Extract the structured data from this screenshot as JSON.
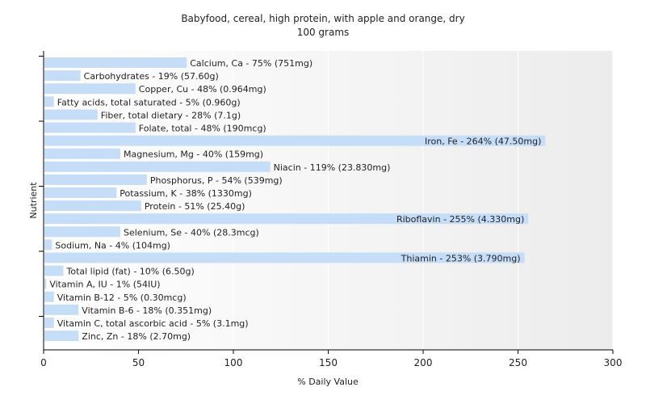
{
  "chart_data": {
    "type": "bar",
    "orientation": "horizontal",
    "title": "Babyfood, cereal, high protein, with apple and orange, dry",
    "subtitle": "100 grams",
    "xlabel": "% Daily Value",
    "ylabel": "Nutrient",
    "xlim": [
      0,
      300
    ],
    "xticks": [
      "0",
      "50",
      "100",
      "150",
      "200",
      "250",
      "300"
    ],
    "grid": true,
    "bar_color": "#c6ddf7",
    "categories": [
      "Calcium, Ca",
      "Carbohydrates",
      "Copper, Cu",
      "Fatty acids, total saturated",
      "Fiber, total dietary",
      "Folate, total",
      "Iron, Fe",
      "Magnesium, Mg",
      "Niacin",
      "Phosphorus, P",
      "Potassium, K",
      "Protein",
      "Riboflavin",
      "Selenium, Se",
      "Sodium, Na",
      "Thiamin",
      "Total lipid (fat)",
      "Vitamin A, IU",
      "Vitamin B-12",
      "Vitamin B-6",
      "Vitamin C, total ascorbic acid",
      "Zinc, Zn"
    ],
    "values": [
      75,
      19,
      48,
      5,
      28,
      48,
      264,
      40,
      119,
      54,
      38,
      51,
      255,
      40,
      4,
      253,
      10,
      1,
      5,
      18,
      5,
      18
    ],
    "labels": [
      "Calcium, Ca - 75% (751mg)",
      "Carbohydrates - 19% (57.60g)",
      "Copper, Cu - 48% (0.964mg)",
      "Fatty acids, total saturated - 5% (0.960g)",
      "Fiber, total dietary - 28% (7.1g)",
      "Folate, total - 48% (190mcg)",
      "Iron, Fe - 264% (47.50mg)",
      "Magnesium, Mg - 40% (159mg)",
      "Niacin - 119% (23.830mg)",
      "Phosphorus, P - 54% (539mg)",
      "Potassium, K - 38% (1330mg)",
      "Protein - 51% (25.40g)",
      "Riboflavin - 255% (4.330mg)",
      "Selenium, Se - 40% (28.3mcg)",
      "Sodium, Na - 4% (104mg)",
      "Thiamin - 253% (3.790mg)",
      "Total lipid (fat) - 10% (6.50g)",
      "Vitamin A, IU - 1% (54IU)",
      "Vitamin B-12 - 5% (0.30mcg)",
      "Vitamin B-6 - 18% (0.351mg)",
      "Vitamin C, total ascorbic acid - 5% (3.1mg)",
      "Zinc, Zn - 18% (2.70mg)"
    ]
  }
}
